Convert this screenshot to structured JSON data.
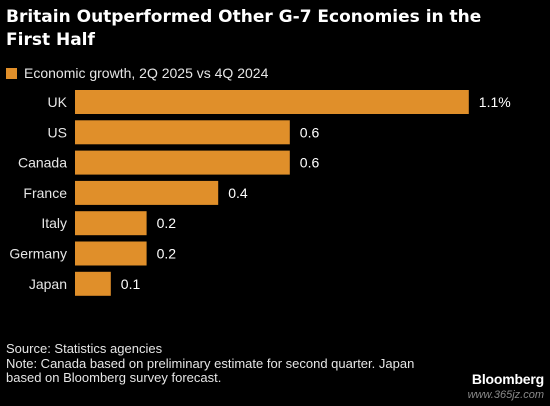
{
  "title": "Britain Outperformed Other G-7 Economies in the First Half",
  "legend": {
    "label": "Economic growth, 2Q 2025 vs 4Q 2024",
    "color": "#e08f2a"
  },
  "chart_data": {
    "type": "bar",
    "orientation": "horizontal",
    "title": "Britain Outperformed Other G-7 Economies in the First Half",
    "categories": [
      "UK",
      "US",
      "Canada",
      "France",
      "Italy",
      "Germany",
      "Japan"
    ],
    "series": [
      {
        "name": "Economic growth, 2Q 2025 vs 4Q 2024",
        "values": [
          1.1,
          0.6,
          0.6,
          0.4,
          0.2,
          0.2,
          0.1
        ]
      }
    ],
    "data_labels": [
      "1.1%",
      "0.6",
      "0.6",
      "0.4",
      "0.2",
      "0.2",
      "0.1"
    ],
    "xlim": [
      0,
      1.1
    ],
    "grid": false,
    "legend_position": "top-left",
    "bar_color": "#e08f2a"
  },
  "footer": {
    "source": "Source: Statistics agencies",
    "note": "Note: Canada based on preliminary estimate for second quarter. Japan based on Bloomberg survey forecast."
  },
  "brand": "Bloomberg",
  "watermark": "www.365jz.com",
  "colors": {
    "background": "#000000",
    "text": "#ffffff",
    "bar": "#e08f2a"
  }
}
